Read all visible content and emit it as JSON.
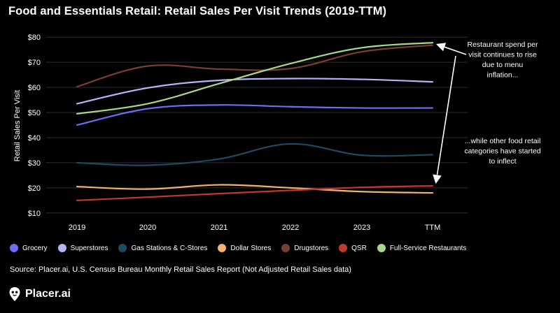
{
  "colors": {
    "background": "#000000",
    "text": "#ffffff",
    "grid": "#2e2e2e"
  },
  "chart_data": {
    "type": "line",
    "title": "Food and Essentials Retail: Retail Sales Per Visit Trends (2019-TTM)",
    "ylabel": "Retail Sales Per Visit",
    "xlabel": "",
    "categories": [
      "2019",
      "2020",
      "2021",
      "2022",
      "2023",
      "TTM"
    ],
    "ylim": [
      8,
      82
    ],
    "yticks": [
      10,
      20,
      30,
      40,
      50,
      60,
      70,
      80
    ],
    "ytick_labels": [
      "$10",
      "$20",
      "$30",
      "$40",
      "$50",
      "$60",
      "$70",
      "$80"
    ],
    "legend_position": "bottom",
    "series": [
      {
        "name": "Grocery",
        "color": "#6e6ef0",
        "values": [
          45,
          51.5,
          53,
          52.3,
          51.8,
          51.8
        ]
      },
      {
        "name": "Superstores",
        "color": "#b3b7f5",
        "values": [
          53.5,
          59.8,
          62.8,
          63.5,
          63.2,
          62.2
        ]
      },
      {
        "name": "Gas Stations & C-Stores",
        "color": "#1f4a64",
        "values": [
          30,
          29,
          31.5,
          37.5,
          33,
          33.2
        ]
      },
      {
        "name": "Dollar Stores",
        "color": "#f2b36b",
        "values": [
          20.5,
          19.5,
          21.2,
          20,
          18.5,
          18
        ]
      },
      {
        "name": "Drugstores",
        "color": "#7a3e32",
        "values": [
          60.3,
          68.5,
          67.3,
          67.5,
          74.2,
          76.8
        ]
      },
      {
        "name": "QSR",
        "color": "#c0392b",
        "values": [
          15,
          16.3,
          17.7,
          19,
          20.2,
          20.8
        ]
      },
      {
        "name": "Full-Service Restaurants",
        "color": "#a8d88a",
        "values": [
          49.5,
          53.5,
          61.5,
          69.5,
          75.8,
          77.8
        ]
      }
    ],
    "annotations": [
      {
        "id": "restaurant",
        "lines": [
          "Restaurant spend per",
          "visit continues to rise",
          "due to menu",
          "inflation..."
        ],
        "arrow_to_series": "Full-Service Restaurants"
      },
      {
        "id": "other",
        "lines": [
          "...while other food retail",
          "categories have started",
          "to inflect"
        ],
        "arrow_to_series": "QSR"
      }
    ]
  },
  "source": "Source: Placer.ai, U.S. Census Bureau Monthly Retail Sales Report (Not Adjusted Retail Sales data)",
  "brand": {
    "name": "Placer.ai"
  }
}
